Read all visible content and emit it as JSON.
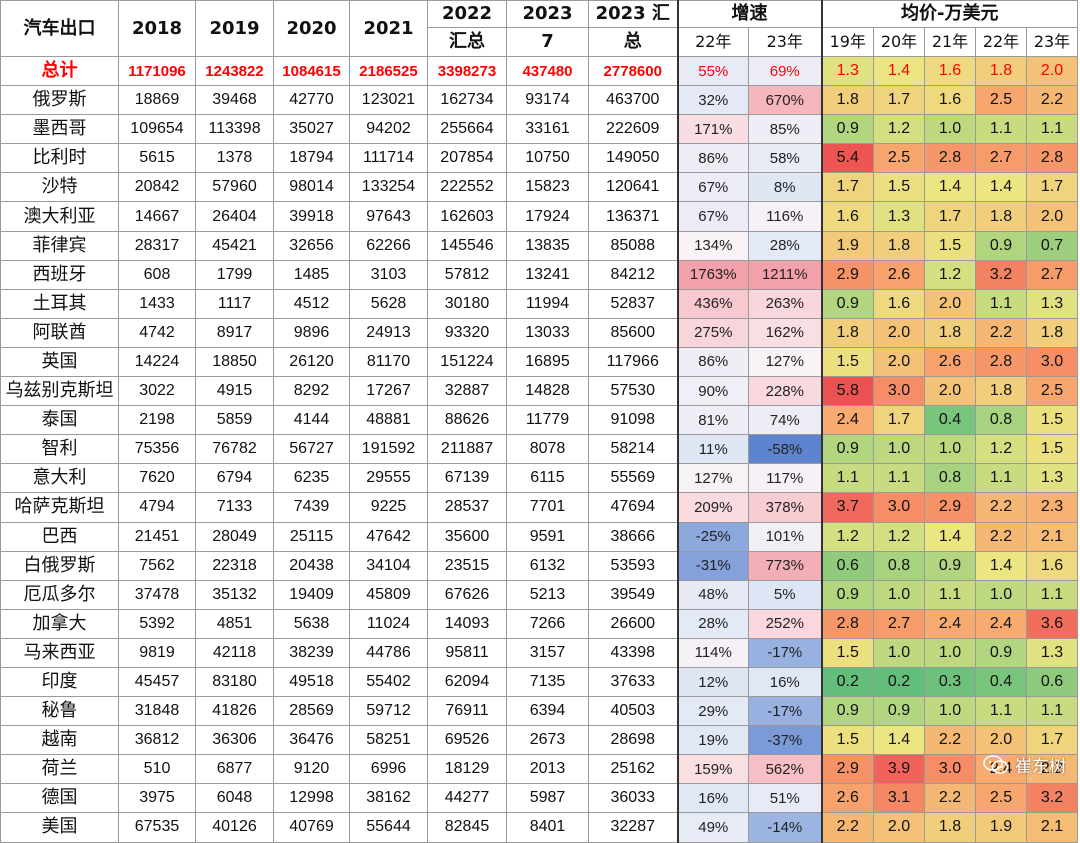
{
  "header": {
    "title": "汽车出口",
    "years": [
      "2018",
      "2019",
      "2020",
      "2021"
    ],
    "y2022": [
      "2022",
      "汇总"
    ],
    "y2023m": [
      "2023",
      "7"
    ],
    "y2023sum": [
      "2023 汇",
      "总"
    ],
    "growth": "增速",
    "growth_sub": [
      "22年",
      "23年"
    ],
    "avg": "均价-万美元",
    "avg_sub": [
      "19年",
      "20年",
      "21年",
      "22年",
      "23年"
    ]
  },
  "total": {
    "name": "总计",
    "v": [
      "1171096",
      "1243822",
      "1084615",
      "2186525",
      "3398273",
      "437480",
      "2778600"
    ],
    "g": [
      "55%",
      "69%"
    ],
    "a": [
      "1.3",
      "1.4",
      "1.6",
      "1.8",
      "2.0"
    ]
  },
  "rows": [
    {
      "name": "俄罗斯",
      "v": [
        "18869",
        "39468",
        "42770",
        "123021",
        "162734",
        "93174",
        "463700"
      ],
      "g": [
        "32%",
        "670%"
      ],
      "a": [
        "1.8",
        "1.7",
        "1.6",
        "2.5",
        "2.2"
      ]
    },
    {
      "name": "墨西哥",
      "v": [
        "109654",
        "113398",
        "35027",
        "94202",
        "255664",
        "33161",
        "222609"
      ],
      "g": [
        "171%",
        "85%"
      ],
      "a": [
        "0.9",
        "1.2",
        "1.0",
        "1.1",
        "1.1"
      ]
    },
    {
      "name": "比利时",
      "v": [
        "5615",
        "1378",
        "18794",
        "111714",
        "207854",
        "10750",
        "149050"
      ],
      "g": [
        "86%",
        "58%"
      ],
      "a": [
        "5.4",
        "2.5",
        "2.8",
        "2.7",
        "2.8"
      ]
    },
    {
      "name": "沙特",
      "v": [
        "20842",
        "57960",
        "98014",
        "133254",
        "222552",
        "15823",
        "120641"
      ],
      "g": [
        "67%",
        "8%"
      ],
      "a": [
        "1.7",
        "1.5",
        "1.4",
        "1.4",
        "1.7"
      ]
    },
    {
      "name": "澳大利亚",
      "v": [
        "14667",
        "26404",
        "39918",
        "97643",
        "162603",
        "17924",
        "136371"
      ],
      "g": [
        "67%",
        "116%"
      ],
      "a": [
        "1.6",
        "1.3",
        "1.7",
        "1.8",
        "2.0"
      ]
    },
    {
      "name": "菲律宾",
      "v": [
        "28317",
        "45421",
        "32656",
        "62266",
        "145546",
        "13835",
        "85088"
      ],
      "g": [
        "134%",
        "28%"
      ],
      "a": [
        "1.9",
        "1.8",
        "1.5",
        "0.9",
        "0.7"
      ]
    },
    {
      "name": "西班牙",
      "v": [
        "608",
        "1799",
        "1485",
        "3103",
        "57812",
        "13241",
        "84212"
      ],
      "g": [
        "1763%",
        "1211%"
      ],
      "a": [
        "2.9",
        "2.6",
        "1.2",
        "3.2",
        "2.7"
      ]
    },
    {
      "name": "土耳其",
      "v": [
        "1433",
        "1117",
        "4512",
        "5628",
        "30180",
        "11994",
        "52837"
      ],
      "g": [
        "436%",
        "263%"
      ],
      "a": [
        "0.9",
        "1.6",
        "2.0",
        "1.1",
        "1.3"
      ]
    },
    {
      "name": "阿联酋",
      "v": [
        "4742",
        "8917",
        "9896",
        "24913",
        "93320",
        "13033",
        "85600"
      ],
      "g": [
        "275%",
        "162%"
      ],
      "a": [
        "1.8",
        "2.0",
        "1.8",
        "2.2",
        "1.8"
      ]
    },
    {
      "name": "英国",
      "v": [
        "14224",
        "18850",
        "26120",
        "81170",
        "151224",
        "16895",
        "117966"
      ],
      "g": [
        "86%",
        "127%"
      ],
      "a": [
        "1.5",
        "2.0",
        "2.6",
        "2.8",
        "3.0"
      ]
    },
    {
      "name": "乌兹别克斯坦",
      "v": [
        "3022",
        "4915",
        "8292",
        "17267",
        "32887",
        "14828",
        "57530"
      ],
      "g": [
        "90%",
        "228%"
      ],
      "a": [
        "5.8",
        "3.0",
        "2.0",
        "1.8",
        "2.5"
      ]
    },
    {
      "name": "泰国",
      "v": [
        "2198",
        "5859",
        "4144",
        "48881",
        "88626",
        "11779",
        "91098"
      ],
      "g": [
        "81%",
        "74%"
      ],
      "a": [
        "2.4",
        "1.7",
        "0.4",
        "0.8",
        "1.5"
      ]
    },
    {
      "name": "智利",
      "v": [
        "75356",
        "76782",
        "56727",
        "191592",
        "211887",
        "8078",
        "58214"
      ],
      "g": [
        "11%",
        "-58%"
      ],
      "a": [
        "0.9",
        "1.0",
        "1.0",
        "1.2",
        "1.5"
      ]
    },
    {
      "name": "意大利",
      "v": [
        "7620",
        "6794",
        "6235",
        "29555",
        "67139",
        "6115",
        "55569"
      ],
      "g": [
        "127%",
        "117%"
      ],
      "a": [
        "1.1",
        "1.1",
        "0.8",
        "1.1",
        "1.3"
      ]
    },
    {
      "name": "哈萨克斯坦",
      "v": [
        "4794",
        "7133",
        "7439",
        "9225",
        "28537",
        "7701",
        "47694"
      ],
      "g": [
        "209%",
        "378%"
      ],
      "a": [
        "3.7",
        "3.0",
        "2.9",
        "2.2",
        "2.3"
      ]
    },
    {
      "name": "巴西",
      "v": [
        "21451",
        "28049",
        "25115",
        "47642",
        "35600",
        "9591",
        "38666"
      ],
      "g": [
        "-25%",
        "101%"
      ],
      "a": [
        "1.2",
        "1.2",
        "1.4",
        "2.2",
        "2.1"
      ]
    },
    {
      "name": "白俄罗斯",
      "v": [
        "7562",
        "22318",
        "20438",
        "34104",
        "23515",
        "6132",
        "53593"
      ],
      "g": [
        "-31%",
        "773%"
      ],
      "a": [
        "0.6",
        "0.8",
        "0.9",
        "1.4",
        "1.6"
      ]
    },
    {
      "name": "厄瓜多尔",
      "v": [
        "37478",
        "35132",
        "19409",
        "45809",
        "67626",
        "5213",
        "39549"
      ],
      "g": [
        "48%",
        "5%"
      ],
      "a": [
        "0.9",
        "1.0",
        "1.1",
        "1.0",
        "1.1"
      ]
    },
    {
      "name": "加拿大",
      "v": [
        "5392",
        "4851",
        "5638",
        "11024",
        "14093",
        "7266",
        "26600"
      ],
      "g": [
        "28%",
        "252%"
      ],
      "a": [
        "2.8",
        "2.7",
        "2.4",
        "2.4",
        "3.6"
      ]
    },
    {
      "name": "马来西亚",
      "v": [
        "9819",
        "42118",
        "38239",
        "44786",
        "95811",
        "3157",
        "43398"
      ],
      "g": [
        "114%",
        "-17%"
      ],
      "a": [
        "1.5",
        "1.0",
        "1.0",
        "0.9",
        "1.3"
      ]
    },
    {
      "name": "印度",
      "v": [
        "45457",
        "83180",
        "49518",
        "55402",
        "62094",
        "7135",
        "37633"
      ],
      "g": [
        "12%",
        "16%"
      ],
      "a": [
        "0.2",
        "0.2",
        "0.3",
        "0.4",
        "0.6"
      ]
    },
    {
      "name": "秘鲁",
      "v": [
        "31848",
        "41826",
        "28569",
        "59712",
        "76911",
        "6394",
        "40503"
      ],
      "g": [
        "29%",
        "-17%"
      ],
      "a": [
        "0.9",
        "0.9",
        "1.0",
        "1.1",
        "1.1"
      ]
    },
    {
      "name": "越南",
      "v": [
        "36812",
        "36306",
        "36476",
        "58251",
        "69526",
        "2673",
        "28698"
      ],
      "g": [
        "19%",
        "-37%"
      ],
      "a": [
        "1.5",
        "1.4",
        "2.2",
        "2.0",
        "1.7"
      ]
    },
    {
      "name": "荷兰",
      "v": [
        "510",
        "6877",
        "9120",
        "6996",
        "18129",
        "2013",
        "25162"
      ],
      "g": [
        "159%",
        "562%"
      ],
      "a": [
        "2.9",
        "3.9",
        "3.0",
        "2.4",
        "2.2"
      ]
    },
    {
      "name": "德国",
      "v": [
        "3975",
        "6048",
        "12998",
        "38162",
        "44277",
        "5987",
        "36033"
      ],
      "g": [
        "16%",
        "51%"
      ],
      "a": [
        "2.6",
        "3.1",
        "2.2",
        "2.5",
        "3.2"
      ]
    },
    {
      "name": "美国",
      "v": [
        "67535",
        "40126",
        "40769",
        "55644",
        "82845",
        "8401",
        "32287"
      ],
      "g": [
        "49%",
        "-14%"
      ],
      "a": [
        "2.2",
        "2.0",
        "1.8",
        "1.9",
        "2.1"
      ]
    }
  ],
  "watermark": {
    "text": "崔东树",
    "icon": "wechat-icon"
  },
  "colors": {
    "total_text": "#ff0000",
    "grid": "#9a9a9a",
    "white": "#ffffff"
  }
}
